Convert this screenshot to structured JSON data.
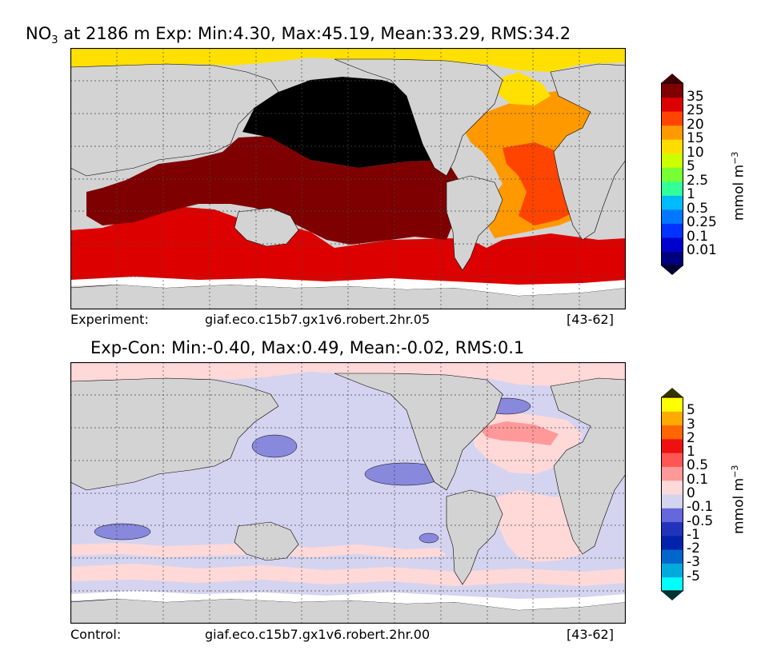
{
  "panel_top": {
    "title_species": "NO",
    "title_subscript": "3",
    "title_rest": " at 2186 m Exp: Min:4.30, Max:45.19, Mean:33.29, RMS:34.2",
    "caption_label": "Experiment:",
    "caption_run": "giaf.eco.c15b7.gx1v6.robert.2hr.05",
    "caption_years": "[43-62]",
    "colorbar": {
      "ticks": [
        "0.01",
        "0.1",
        "0.25",
        "0.5",
        "1",
        "2.5",
        "5",
        "10",
        "15",
        "20",
        "25",
        "35"
      ],
      "colors": [
        "#00007f",
        "#0000cc",
        "#0033ff",
        "#0077ff",
        "#00bbff",
        "#33ff99",
        "#77ff33",
        "#ccff00",
        "#ffdd00",
        "#ff9900",
        "#ff4400",
        "#dd0000",
        "#7f0000"
      ],
      "under_color": "#000033",
      "over_color": "#400000",
      "unit": "mmol m",
      "unit_exp": "−3"
    }
  },
  "panel_bottom": {
    "title": "Exp-Con: Min:-0.40, Max:0.49, Mean:-0.02, RMS:0.1",
    "caption_label": "Control:",
    "caption_run": "giaf.eco.c15b7.gx1v6.robert.2hr.00",
    "caption_years": "[43-62]",
    "colorbar": {
      "ticks": [
        "-5",
        "-3",
        "-2",
        "-1",
        "-0.5",
        "-0.1",
        "0",
        "0.1",
        "0.5",
        "1",
        "2",
        "3",
        "5"
      ],
      "colors": [
        "#00ffff",
        "#00aadd",
        "#0066cc",
        "#0022aa",
        "#2233bb",
        "#6666dd",
        "#d4d4f0",
        "#ffd8d8",
        "#ff9999",
        "#ff5555",
        "#ee1111",
        "#ff6600",
        "#ffaa00",
        "#ffff00"
      ],
      "under_color": "#003333",
      "over_color": "#333300",
      "unit": "mmol m",
      "unit_exp": "−3"
    }
  }
}
